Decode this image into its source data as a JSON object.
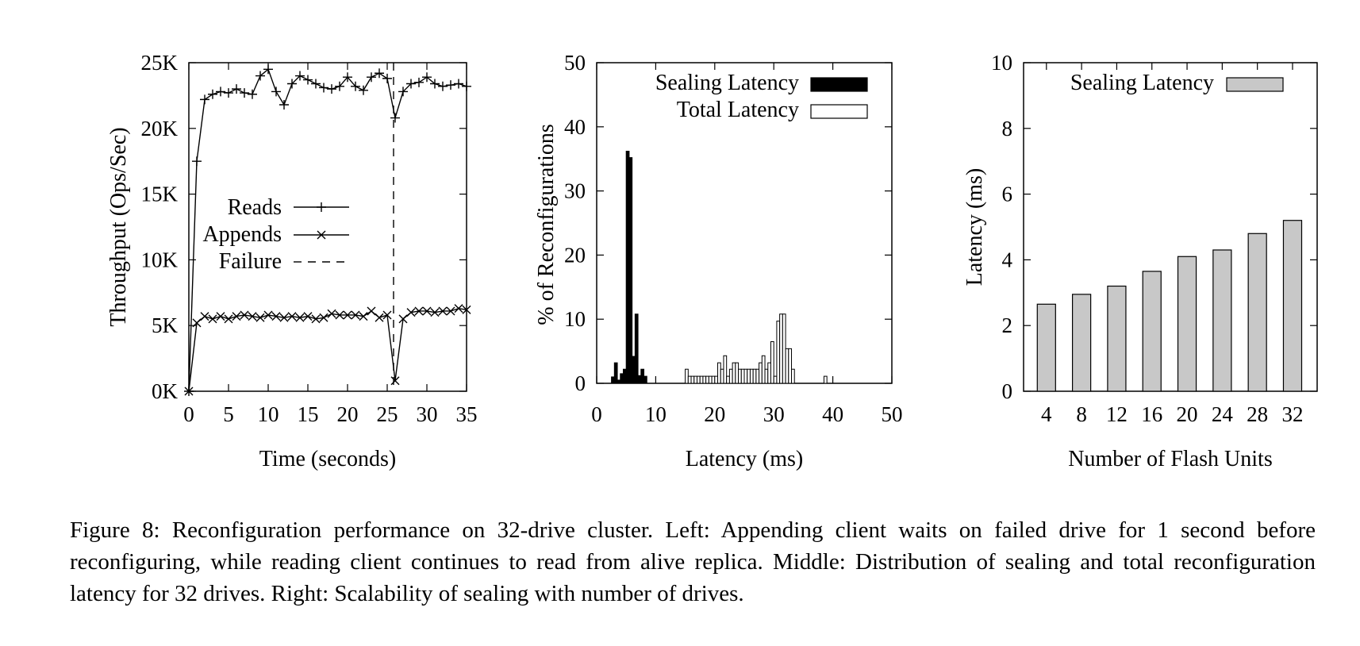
{
  "chart_data": [
    {
      "type": "line",
      "id": "left",
      "title": "",
      "xlabel": "Time (seconds)",
      "ylabel": "Throughput (Ops/Sec)",
      "xlim": [
        0,
        35
      ],
      "ylim": [
        0,
        25000
      ],
      "xticks": [
        0,
        5,
        10,
        15,
        20,
        25,
        30,
        35
      ],
      "xtick_labels": [
        "0",
        "5",
        "10",
        "15",
        "20",
        "25",
        "30",
        "35"
      ],
      "yticks": [
        0,
        5000,
        10000,
        15000,
        20000,
        25000
      ],
      "ytick_labels": [
        "0K",
        "5K",
        "10K",
        "15K",
        "20K",
        "25K"
      ],
      "failure_x": 25.8,
      "legend": [
        "Reads",
        "Appends",
        "Failure"
      ],
      "series": [
        {
          "name": "Reads",
          "marker": "+",
          "x": [
            0,
            1,
            2,
            3,
            4,
            5,
            6,
            7,
            8,
            9,
            10,
            11,
            12,
            13,
            14,
            15,
            16,
            17,
            18,
            19,
            20,
            21,
            22,
            23,
            24,
            25,
            26,
            27,
            28,
            29,
            30,
            31,
            32,
            33,
            34,
            35
          ],
          "values": [
            0,
            17500,
            22200,
            22600,
            22800,
            22700,
            23000,
            22700,
            22600,
            24000,
            24500,
            22800,
            21800,
            23400,
            24000,
            23700,
            23400,
            23100,
            23000,
            23200,
            23900,
            23200,
            22900,
            23900,
            24200,
            23800,
            20800,
            22800,
            23400,
            23500,
            23900,
            23400,
            23200,
            23300,
            23400,
            23200
          ]
        },
        {
          "name": "Appends",
          "marker": "x",
          "x": [
            0,
            1,
            2,
            3,
            4,
            5,
            6,
            7,
            8,
            9,
            10,
            11,
            12,
            13,
            14,
            15,
            16,
            17,
            18,
            19,
            20,
            21,
            22,
            23,
            24,
            25,
            26,
            27,
            28,
            29,
            30,
            31,
            32,
            33,
            34,
            35
          ],
          "values": [
            0,
            5200,
            5700,
            5500,
            5700,
            5500,
            5700,
            5800,
            5700,
            5600,
            5800,
            5700,
            5600,
            5700,
            5600,
            5700,
            5500,
            5600,
            5900,
            5800,
            5800,
            5800,
            5700,
            6100,
            5600,
            5800,
            800,
            5500,
            6000,
            6100,
            6100,
            6000,
            6100,
            6100,
            6300,
            6200
          ]
        }
      ]
    },
    {
      "type": "bar",
      "id": "middle",
      "title": "",
      "xlabel": "Latency (ms)",
      "ylabel": "% of Reconfigurations",
      "xlim": [
        0,
        50
      ],
      "ylim": [
        0,
        50
      ],
      "xticks": [
        0,
        10,
        20,
        30,
        40,
        50
      ],
      "xtick_labels": [
        "0",
        "10",
        "20",
        "30",
        "40",
        "50"
      ],
      "yticks": [
        0,
        10,
        20,
        30,
        40,
        50
      ],
      "ytick_labels": [
        "0",
        "10",
        "20",
        "30",
        "40",
        "50"
      ],
      "bin_width": 0.5,
      "legend": [
        "Sealing Latency",
        "Total Latency"
      ],
      "series": [
        {
          "name": "Sealing Latency",
          "fill": "#000000",
          "x": [
            2.5,
            3,
            3.5,
            4,
            4.5,
            5,
            5.5,
            6,
            6.5,
            7,
            7.5,
            8
          ],
          "values": [
            1,
            3.2,
            0.5,
            1.5,
            2.2,
            36.2,
            35.2,
            4.2,
            10.8,
            1.2,
            2.2,
            1.1
          ]
        },
        {
          "name": "Total Latency",
          "fill": "#ffffff",
          "x": [
            15,
            15.5,
            16,
            16.5,
            17,
            17.5,
            18,
            18.5,
            19,
            19.5,
            20,
            20.5,
            21,
            21.5,
            22,
            22.5,
            23,
            23.5,
            24,
            24.5,
            25,
            25.5,
            26,
            26.5,
            27,
            27.5,
            28,
            28.5,
            29,
            29.5,
            30,
            30.5,
            31,
            31.5,
            32,
            32.5,
            33,
            38.5
          ],
          "values": [
            2.2,
            1.1,
            1.1,
            1.1,
            1.1,
            1.1,
            1.1,
            1.1,
            1.1,
            1.1,
            1.1,
            3.2,
            2.2,
            4.3,
            1.1,
            2.2,
            3.2,
            3.2,
            2.2,
            2.2,
            2.2,
            2.2,
            2.2,
            2.2,
            2.2,
            3.2,
            4.3,
            2.2,
            3.2,
            6.5,
            1.1,
            9.7,
            10.8,
            10.8,
            5.4,
            5.4,
            2.2,
            1.1
          ]
        }
      ]
    },
    {
      "type": "bar",
      "id": "right",
      "title": "",
      "xlabel": "Number of Flash Units",
      "ylabel": "Latency (ms)",
      "ylim": [
        0,
        10
      ],
      "yticks": [
        0,
        2,
        4,
        6,
        8,
        10
      ],
      "ytick_labels": [
        "0",
        "2",
        "4",
        "6",
        "8",
        "10"
      ],
      "categories": [
        "4",
        "8",
        "12",
        "16",
        "20",
        "24",
        "28",
        "32"
      ],
      "legend": [
        "Sealing Latency"
      ],
      "series": [
        {
          "name": "Sealing Latency",
          "fill": "#c8c8c8",
          "values": [
            2.65,
            2.95,
            3.2,
            3.65,
            4.1,
            4.3,
            4.8,
            5.2
          ]
        }
      ]
    }
  ],
  "caption": "Figure 8: Reconfiguration performance on 32-drive cluster. Left: Appending client waits on failed drive for 1 second before reconfiguring, while reading client continues to read from alive replica.  Middle: Distribution of sealing and total reconfiguration latency for 32 drives. Right: Scalability of sealing with number of drives."
}
